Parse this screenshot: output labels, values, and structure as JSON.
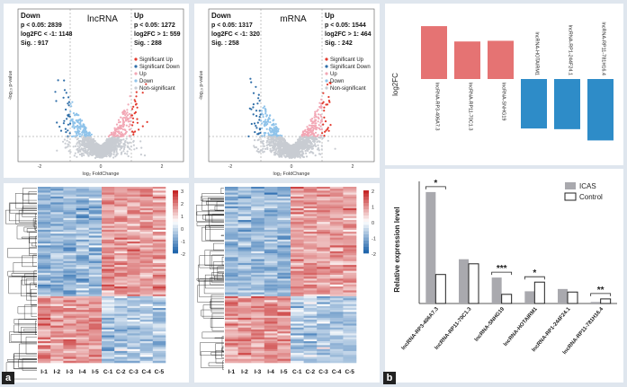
{
  "panel_labels": {
    "a": "a",
    "b": "b"
  },
  "volcano_lnc": {
    "title": "lncRNA",
    "down": [
      "Down",
      "p < 0.05: 2839",
      "log2FC < -1: 1148",
      "Sig. : 917"
    ],
    "up": [
      "Up",
      "p < 0.05: 1272",
      "log2FC > 1: 559",
      "Sig. : 288"
    ],
    "legend": [
      "Significant Up",
      "Significant Down",
      "Up",
      "Down",
      "Non-significant"
    ],
    "xlabel": "log₂ FoldChange",
    "ylabel": "-log₁₀ p-value",
    "xticks": [
      "-2",
      "0",
      "2"
    ]
  },
  "volcano_mrna": {
    "title": "mRNA",
    "down": [
      "Down",
      "p < 0.05: 1317",
      "log2FC < -1: 320",
      "Sig. : 258"
    ],
    "up": [
      "Up",
      "p < 0.05: 1544",
      "log2FC > 1: 464",
      "Sig. : 242"
    ],
    "legend": [
      "Significant Up",
      "Significant Down",
      "Up",
      "Down",
      "Non-significant"
    ],
    "xlabel": "log₂ FoldChange",
    "ylabel": "-log₁₀ p-value",
    "xticks": [
      "-2",
      "0",
      "2"
    ]
  },
  "heatmap": {
    "samples": [
      "I-1",
      "I-2",
      "I-3",
      "I-4",
      "I-5",
      "C-1",
      "C-2",
      "C-3",
      "C-4",
      "C-5"
    ],
    "scale_lnc": [
      "3",
      "2",
      "1",
      "0",
      "-1",
      "-2"
    ],
    "scale_mrna": [
      "2",
      "1",
      "0",
      "-1",
      "-2"
    ]
  },
  "colors": {
    "sig_up": "#e23a2e",
    "sig_down": "#2f6ea8",
    "up": "#f2a7b5",
    "down": "#8fc3ea",
    "ns": "#c8ccd2",
    "bar_up": "#e57373",
    "bar_down": "#2e8cc8",
    "icas": "#a9a9ae"
  },
  "chart_data": [
    {
      "type": "bar",
      "title": "",
      "ylabel": "log2FC",
      "categories": [
        "lncRNA-RP3-406A7.3",
        "lncRNA-RP11-70C1.3",
        "lncRNA-SNHG19",
        "lncRNA-HOTAIRM1",
        "lncRNA-RP1-244F24.1",
        "lncRNA-RP11-781H16.4"
      ],
      "values": [
        1.55,
        1.1,
        1.12,
        -1.45,
        -1.47,
        -1.8
      ],
      "ylim": [
        -2,
        2
      ]
    },
    {
      "type": "bar",
      "title": "",
      "xlabel": "",
      "ylabel": "Relative expression level",
      "categories": [
        "lncRNA-RP3-406A7.3",
        "lncRNA-RP11-70C1.3",
        "lncRNA-SNHG19",
        "lncRNA-HOTAIRM1",
        "lncRNA-RP1-244F24.1",
        "lncRNA-RP11-781H16.4"
      ],
      "series": [
        {
          "name": "ICAS",
          "values": [
            7.3,
            2.9,
            1.7,
            0.8,
            0.95,
            0.1
          ]
        },
        {
          "name": "Control",
          "values": [
            1.9,
            2.6,
            0.6,
            1.4,
            0.75,
            0.3
          ]
        }
      ],
      "significance": [
        "*",
        "",
        "***",
        "*",
        "",
        "**"
      ],
      "ylim": [
        0,
        8
      ]
    }
  ]
}
